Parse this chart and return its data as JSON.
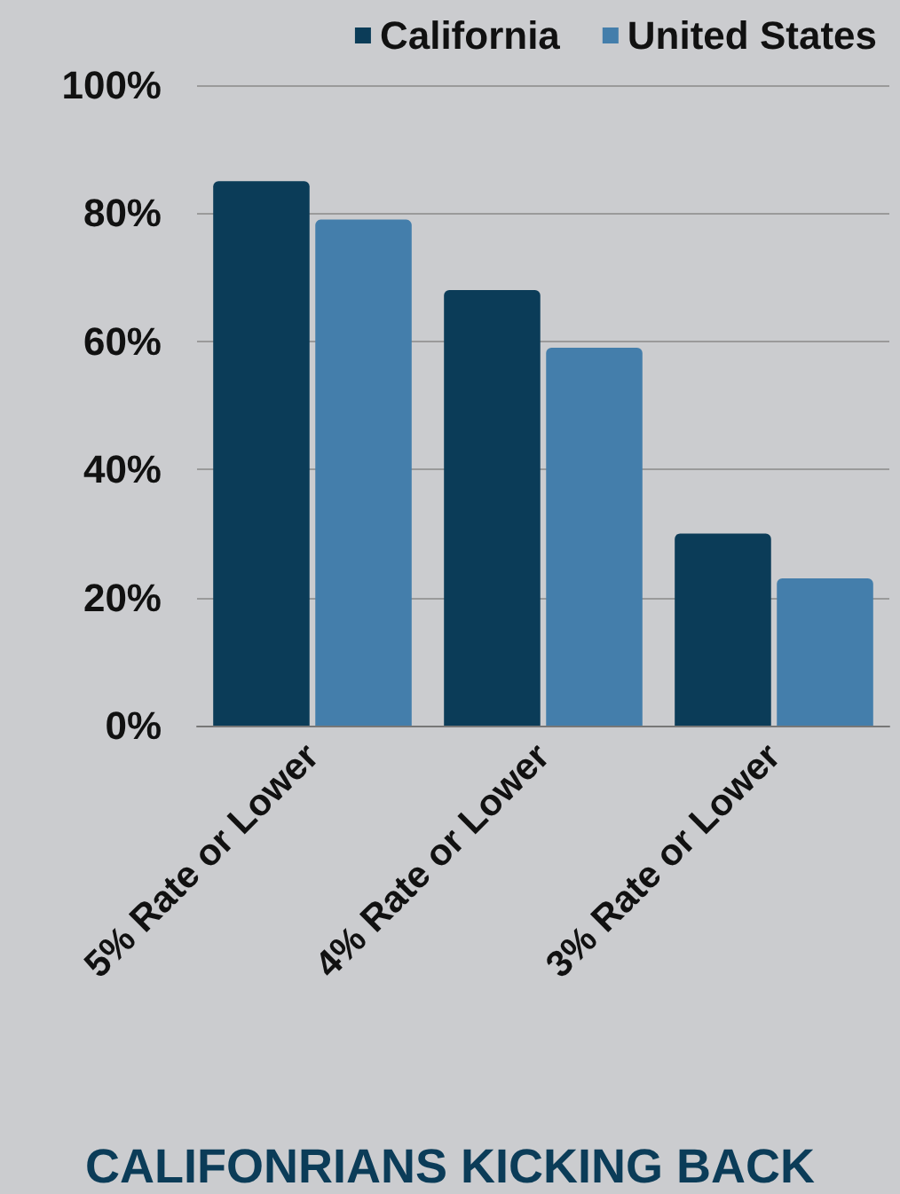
{
  "chart_data": {
    "type": "bar",
    "title": "CALIFONRIANS KICKING BACK",
    "categories": [
      "5% Rate or Lower",
      "4% Rate or Lower",
      "3% Rate or Lower"
    ],
    "series": [
      {
        "name": "California",
        "color": "#0b3c58",
        "values": [
          85,
          68,
          30
        ]
      },
      {
        "name": "United States",
        "color": "#447eab",
        "values": [
          79,
          59,
          23
        ]
      }
    ],
    "ylim": [
      0,
      100
    ],
    "yticks": [
      {
        "value": 0,
        "label": "0%"
      },
      {
        "value": 20,
        "label": "20%"
      },
      {
        "value": 40,
        "label": "40%"
      },
      {
        "value": 60,
        "label": "60%"
      },
      {
        "value": 80,
        "label": "80%"
      },
      {
        "value": 100,
        "label": "100%"
      }
    ],
    "grid": "y",
    "legend": "top right"
  }
}
